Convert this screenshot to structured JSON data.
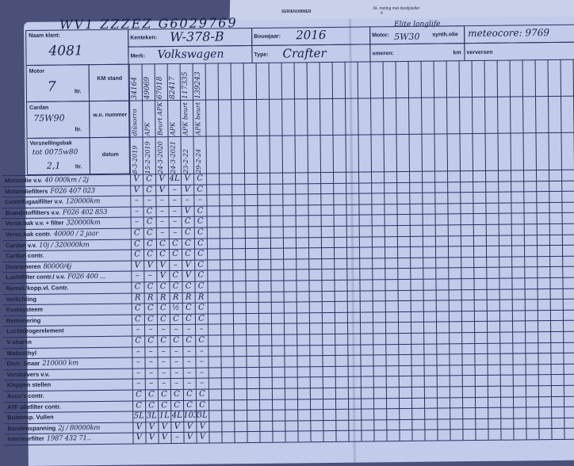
{
  "background": {
    "stamp_text": "SERIENUMMER",
    "note_line": "34, meting met destijsteller",
    "note_number": "4"
  },
  "card": {
    "vin": "WV1 ZZZEZ G6029769",
    "naam_klant": {
      "label": "Naam klant:",
      "value": "4081"
    },
    "kenteken": {
      "label": "Kenteken:",
      "value": "W-378-B"
    },
    "bouwjaar": {
      "label": "Bouwjaar:",
      "value": "2016"
    },
    "merk": {
      "label": "Merk:",
      "value": "Volkswagen"
    },
    "type": {
      "label": "Type:",
      "value": "Crafter"
    },
    "motor_oil": {
      "label": "Motor:",
      "value": "5W30",
      "note": "Elite longlife",
      "suffix": "synth.olie",
      "extra": "meteocore: 9769"
    },
    "smeren": {
      "label": "smeren:",
      "unit": "km"
    },
    "verversen": {
      "label": "verversen",
      "unit": "km"
    },
    "motor": {
      "label": "Motor",
      "value": "7",
      "unit": "ltr."
    },
    "cardan": {
      "label": "Cardan",
      "value": "75W90",
      "unit": "ltr."
    },
    "versnellingsbak": {
      "label": "Versnellingsbak",
      "value": "tot 0075w80",
      "amount": "2,1",
      "unit": "ltr."
    },
    "km_label": "KM stand",
    "wo_label": "w.o. nummer",
    "datum_label": "datum"
  },
  "entries": [
    {
      "km": "34164",
      "wo": "dlüsorro",
      "datum": "8-3-2019"
    },
    {
      "km": "49069",
      "wo": "APK",
      "datum": "15-2-2019"
    },
    {
      "km": "67018",
      "wo": "Beurt APK",
      "datum": "24-3-2020"
    },
    {
      "km": "82417",
      "wo": "APK",
      "datum": "24-3-2021"
    },
    {
      "km": "117335",
      "wo": "APK beurt",
      "datum": "23-2-22"
    },
    {
      "km": "139243",
      "wo": "APK beurt",
      "datum": "29-2-24"
    }
  ],
  "rows": [
    {
      "label": "Motorolie v.v.",
      "note": "40 000km / 2j",
      "marks": [
        "V",
        "C",
        "V",
        "4L",
        "V",
        "C"
      ]
    },
    {
      "label": "Motoroliefilters",
      "note": "F026 407 023",
      "marks": [
        "V",
        "C",
        "V",
        "–",
        "V",
        "C"
      ]
    },
    {
      "label": "Centrifugaalfilter v.v.",
      "note": "120000km",
      "marks": [
        "–",
        "–",
        "–",
        "–",
        "–",
        "–"
      ]
    },
    {
      "label": "Brandstoffilters v.v.",
      "note": "F026 402 853",
      "marks": [
        "–",
        "C",
        "–",
        "–",
        "V",
        "C"
      ]
    },
    {
      "label": "Versn.bak v.v. + filter",
      "note": "320000km",
      "marks": [
        "–",
        "C",
        "–",
        "–",
        "C",
        "C"
      ]
    },
    {
      "label": "Versn.bak contr.",
      "note": "40000 / 2 jaar",
      "marks": [
        "C",
        "C",
        "–",
        "–",
        "C",
        "C"
      ]
    },
    {
      "label": "Cardan v.v.",
      "note": "10j / 320000km",
      "marks": [
        "C",
        "C",
        "C",
        "C",
        "C",
        "C"
      ]
    },
    {
      "label": "Cardan contr.",
      "note": "",
      "marks": [
        "C",
        "C",
        "C",
        "C",
        "C",
        "C"
      ]
    },
    {
      "label": "Doorsmeren",
      "note": "80000/4j",
      "marks": [
        "V",
        "V",
        "V",
        "–",
        "V",
        "C"
      ]
    },
    {
      "label": "Luchtfilter contr./ v.v.",
      "note": "F026 400 ...",
      "marks": [
        "–",
        "–",
        "V",
        "C",
        "V",
        "C"
      ]
    },
    {
      "label": "Remvl./kopp.vl. Contr.",
      "note": "",
      "marks": [
        "C",
        "C",
        "C",
        "C",
        "C",
        "C"
      ]
    },
    {
      "label": "Verlichting",
      "note": "",
      "marks": [
        "R",
        "R",
        "R",
        "R",
        "R",
        "R"
      ]
    },
    {
      "label": "Koelsysteem",
      "note": "",
      "marks": [
        "C",
        "C",
        "C",
        "½",
        "C",
        "C"
      ]
    },
    {
      "label": "Remvoering",
      "note": "",
      "marks": [
        "C",
        "C",
        "C",
        "C",
        "C",
        "C"
      ]
    },
    {
      "label": "Luchtdrogerelement",
      "note": "",
      "marks": [
        "–",
        "–",
        "–",
        "–",
        "–",
        "–"
      ]
    },
    {
      "label": "V-snaren",
      "note": "",
      "marks": [
        "C",
        "C",
        "C",
        "C",
        "C",
        "C"
      ]
    },
    {
      "label": "Wabcothyl",
      "note": "",
      "marks": [
        "–",
        "–",
        "–",
        "–",
        "–",
        "–"
      ]
    },
    {
      "label": "Distr. Snaar",
      "note": "210000 km",
      "marks": [
        "–",
        "–",
        "–",
        "–",
        "–",
        "–"
      ]
    },
    {
      "label": "Verstuivers v.v.",
      "note": "",
      "marks": [
        "–",
        "–",
        "–",
        "–",
        "–",
        "–"
      ]
    },
    {
      "label": "Kleppen stellen",
      "note": "",
      "marks": [
        "–",
        "–",
        "–",
        "–",
        "–",
        "–"
      ]
    },
    {
      "label": "Accu's contr.",
      "note": "",
      "marks": [
        "C",
        "C",
        "C",
        "C",
        "C",
        "C"
      ]
    },
    {
      "label": "ATF oliefilter contr.",
      "note": "",
      "marks": [
        "C",
        "C",
        "C",
        "C",
        "C",
        "C"
      ]
    },
    {
      "label": "Buitensp. Vullen",
      "note": "",
      "marks": [
        "5L",
        "3L",
        "1L",
        "4L",
        "103",
        "3L"
      ]
    },
    {
      "label": "Bandenspanning",
      "note": "2j / 80000km",
      "marks": [
        "V",
        "V",
        "V",
        "V",
        "V",
        "V"
      ]
    },
    {
      "label": "Interieurfilter",
      "note": "1987 432 71..",
      "marks": [
        "V",
        "V",
        "V",
        "–",
        "V",
        "V"
      ]
    }
  ]
}
